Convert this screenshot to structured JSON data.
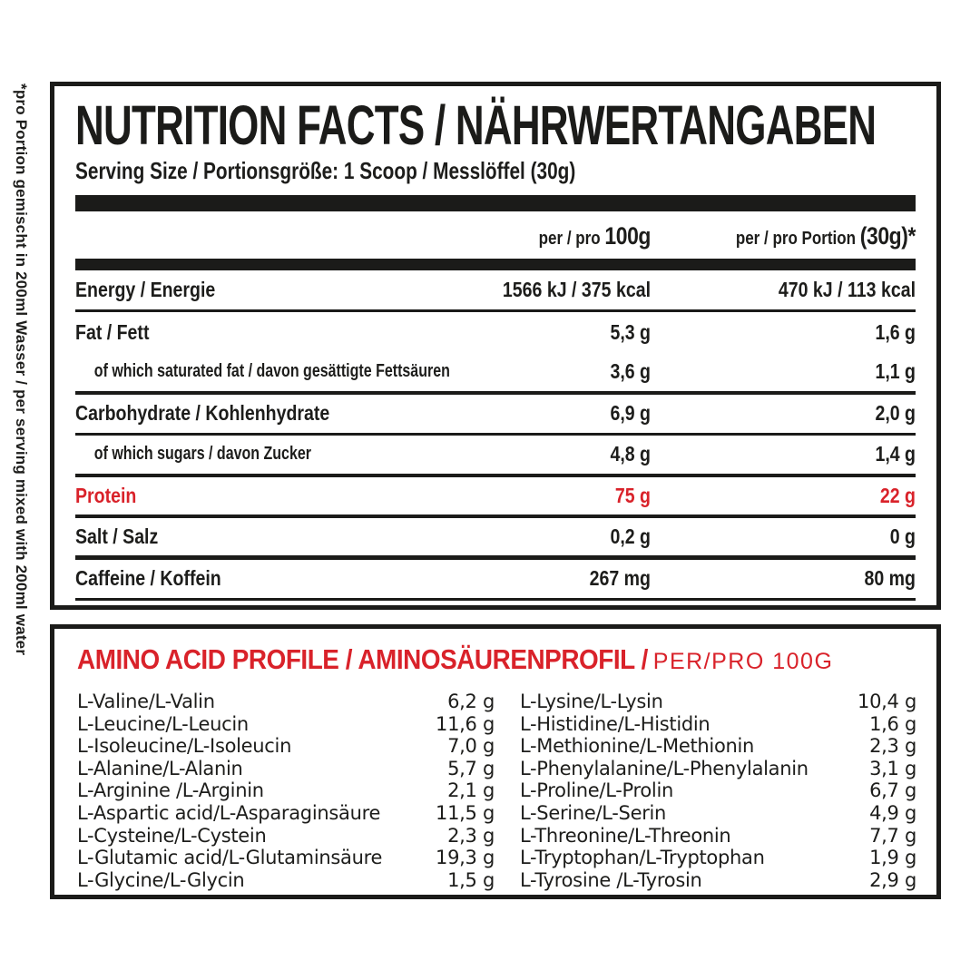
{
  "colors": {
    "accent_red": "#d9222a",
    "ink": "#1d1d1b",
    "background": "#ffffff"
  },
  "side_note": "*pro Portion gemischt in 200ml Wasser / per serving mixed with 200ml water",
  "nutrition": {
    "title": "NUTRITION FACTS / NÄHRWERTANGABEN",
    "serving": "Serving Size / Portionsgröße: 1 Scoop / Messlöffel (30g)",
    "columns": {
      "c1_prefix": "per / pro ",
      "c1_em": "100g",
      "c2_prefix": "per / pro Portion ",
      "c2_em": "(30g)*"
    },
    "rows": [
      {
        "label": "Energy / Energie",
        "per100": "1566 kJ / 375 kcal",
        "portion": "470 kJ / 113 kcal",
        "sub": false,
        "accent": false,
        "rule": 3
      },
      {
        "label": "Fat / Fett",
        "per100": "5,3 g",
        "portion": "1,6 g",
        "sub": false,
        "accent": false,
        "rule": 0
      },
      {
        "label": "of which saturated fat / davon gesättigte Fettsäuren",
        "per100": "3,6 g",
        "portion": "1,1 g",
        "sub": true,
        "accent": false,
        "rule": 4
      },
      {
        "label": "Carbohydrate / Kohlenhydrate",
        "per100": "6,9 g",
        "portion": "2,0 g",
        "sub": false,
        "accent": false,
        "rule": 3
      },
      {
        "label": "of which sugars / davon Zucker",
        "per100": "4,8 g",
        "portion": "1,4 g",
        "sub": true,
        "accent": false,
        "rule": 4
      },
      {
        "label": "Protein",
        "per100": "75 g",
        "portion": "22 g",
        "sub": false,
        "accent": true,
        "rule": 4
      },
      {
        "label": "Salt / Salz",
        "per100": "0,2 g",
        "portion": "0 g",
        "sub": false,
        "accent": false,
        "rule": 5
      },
      {
        "label": "Caffeine / Koffein",
        "per100": "267 mg",
        "portion": "80 mg",
        "sub": false,
        "accent": false,
        "rule": 3
      }
    ]
  },
  "amino": {
    "title": "AMINO ACID PROFILE / AMINOSÄURENPROFIL / ",
    "subtitle": "PER/PRO 100G",
    "left": [
      {
        "name": "L-Valine/L-Valin",
        "value": "6,2 g"
      },
      {
        "name": "L-Leucine/L-Leucin",
        "value": "11,6 g"
      },
      {
        "name": "L-Isoleucine/L-Isoleucin",
        "value": "7,0 g"
      },
      {
        "name": "L-Alanine/L-Alanin",
        "value": "5,7 g"
      },
      {
        "name": "L-Arginine /L-Arginin",
        "value": "2,1 g"
      },
      {
        "name": "L-Aspartic acid/L-Asparaginsäure",
        "value": "11,5 g"
      },
      {
        "name": "L-Cysteine/L-Cystein",
        "value": "2,3 g"
      },
      {
        "name": "L-Glutamic acid/L-Glutaminsäure",
        "value": "19,3 g"
      },
      {
        "name": "L-Glycine/L-Glycin",
        "value": "1,5 g"
      }
    ],
    "right": [
      {
        "name": "L-Lysine/L-Lysin",
        "value": "10,4 g"
      },
      {
        "name": "L-Histidine/L-Histidin",
        "value": "1,6 g"
      },
      {
        "name": "L-Methionine/L-Methionin",
        "value": "2,3 g"
      },
      {
        "name": "L-Phenylalanine/L-Phenylalanin",
        "value": "3,1 g"
      },
      {
        "name": "L-Proline/L-Prolin",
        "value": "6,7 g"
      },
      {
        "name": "L-Serine/L-Serin",
        "value": "4,9 g"
      },
      {
        "name": "L-Threonine/L-Threonin",
        "value": "7,7 g"
      },
      {
        "name": "L-Tryptophan/L-Tryptophan",
        "value": "1,9 g"
      },
      {
        "name": "L-Tyrosine /L-Tyrosin",
        "value": "2,9 g"
      }
    ]
  }
}
